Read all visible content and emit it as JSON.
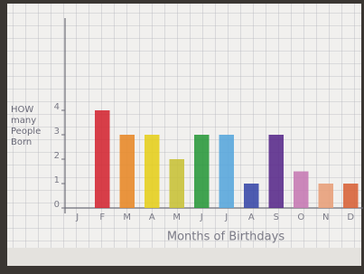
{
  "chart_data": {
    "type": "bar",
    "ylabel": "HOW many People Born",
    "xlabel": "Months of Birthdays",
    "categories": [
      "J",
      "F",
      "M",
      "A",
      "M",
      "J",
      "J",
      "A",
      "S",
      "O",
      "N",
      "D"
    ],
    "values": [
      0,
      4,
      3,
      3,
      2,
      3,
      3,
      1,
      3,
      1.5,
      1,
      1
    ],
    "colors": [
      "#888888",
      "#d42a35",
      "#e8892a",
      "#e6cf1f",
      "#c9c23a",
      "#2e9a3e",
      "#5aa7dc",
      "#3b4aa8",
      "#5b2e8c",
      "#c77bb4",
      "#e8a07a",
      "#d8643a"
    ],
    "ylim": [
      0,
      8
    ],
    "yticks": [
      0,
      1,
      2,
      3,
      4
    ]
  }
}
